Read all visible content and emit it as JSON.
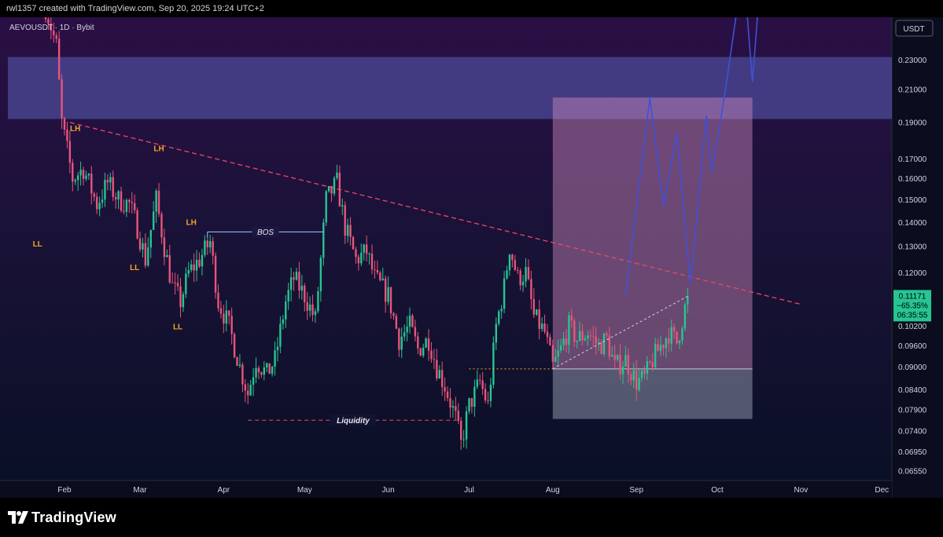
{
  "header": {
    "created_by": "rwl1357 created with TradingView.com, Sep 20, 2025 19:24 UTC+2"
  },
  "symbol": "AEVOUSDT · 1D · Bybit",
  "currency_button": "USDT",
  "logo_text": "TradingView",
  "colors": {
    "bull": "#26c591",
    "bear": "#e8557a",
    "resistance_zone": "#5b5fb8",
    "target_box": "#d08cbf",
    "stop_box": "#8e93a8",
    "projection": "#3f51d8",
    "trendline": "#f0456a",
    "annotation": "#f5a623",
    "last_price_bg": "#26c591"
  },
  "chart_data": {
    "type": "candlestick",
    "symbol": "AEVOUSDT",
    "interval": "1D",
    "exchange": "Bybit",
    "x_labels": [
      "Feb",
      "Mar",
      "Apr",
      "May",
      "Jun",
      "Jul",
      "Aug",
      "Sep",
      "Oct",
      "Nov",
      "Dec"
    ],
    "price_scale": "log",
    "y_ticks": [
      "0.23000",
      "0.21000",
      "0.19000",
      "0.17000",
      "0.16000",
      "0.15000",
      "0.14000",
      "0.13000",
      "0.12000",
      "0.10200",
      "0.09600",
      "0.09000",
      "0.08400",
      "0.07900",
      "0.07400",
      "0.06950",
      "0.06550"
    ],
    "last_price": {
      "value": "0.11171",
      "change": "−65.35%",
      "countdown": "06:35:55"
    },
    "ohlc_path": [
      [
        "2025-01-25",
        0.27
      ],
      [
        "2025-01-29",
        0.24
      ],
      [
        "2025-01-31",
        0.19
      ],
      [
        "2025-02-04",
        0.16
      ],
      [
        "2025-02-08",
        0.165
      ],
      [
        "2025-02-13",
        0.148
      ],
      [
        "2025-02-17",
        0.158
      ],
      [
        "2025-02-21",
        0.15
      ],
      [
        "2025-02-25",
        0.148
      ],
      [
        "2025-02-28",
        0.138
      ],
      [
        "2025-03-03",
        0.125
      ],
      [
        "2025-03-07",
        0.15
      ],
      [
        "2025-03-10",
        0.13
      ],
      [
        "2025-03-13",
        0.115
      ],
      [
        "2025-03-16",
        0.11
      ],
      [
        "2025-03-19",
        0.12
      ],
      [
        "2025-03-23",
        0.125
      ],
      [
        "2025-03-27",
        0.132
      ],
      [
        "2025-03-30",
        0.11
      ],
      [
        "2025-04-03",
        0.102
      ],
      [
        "2025-04-07",
        0.09
      ],
      [
        "2025-04-10",
        0.083
      ],
      [
        "2025-04-13",
        0.092
      ],
      [
        "2025-04-17",
        0.088
      ],
      [
        "2025-04-20",
        0.092
      ],
      [
        "2025-04-24",
        0.11
      ],
      [
        "2025-04-27",
        0.118
      ],
      [
        "2025-05-01",
        0.112
      ],
      [
        "2025-05-05",
        0.104
      ],
      [
        "2025-05-09",
        0.15
      ],
      [
        "2025-05-13",
        0.158
      ],
      [
        "2025-05-16",
        0.138
      ],
      [
        "2025-05-20",
        0.125
      ],
      [
        "2025-05-24",
        0.128
      ],
      [
        "2025-05-27",
        0.118
      ],
      [
        "2025-06-01",
        0.112
      ],
      [
        "2025-06-05",
        0.098
      ],
      [
        "2025-06-09",
        0.102
      ],
      [
        "2025-06-12",
        0.095
      ],
      [
        "2025-06-16",
        0.098
      ],
      [
        "2025-06-19",
        0.09
      ],
      [
        "2025-06-22",
        0.085
      ],
      [
        "2025-06-26",
        0.077
      ],
      [
        "2025-06-28",
        0.071
      ],
      [
        "2025-07-01",
        0.08
      ],
      [
        "2025-07-05",
        0.086
      ],
      [
        "2025-07-08",
        0.08
      ],
      [
        "2025-07-11",
        0.102
      ],
      [
        "2025-07-14",
        0.115
      ],
      [
        "2025-07-16",
        0.13
      ],
      [
        "2025-07-19",
        0.118
      ],
      [
        "2025-07-22",
        0.12
      ],
      [
        "2025-07-25",
        0.105
      ],
      [
        "2025-07-29",
        0.1
      ],
      [
        "2025-08-01",
        0.09
      ],
      [
        "2025-08-04",
        0.095
      ],
      [
        "2025-08-07",
        0.102
      ],
      [
        "2025-08-10",
        0.098
      ],
      [
        "2025-08-14",
        0.1
      ],
      [
        "2025-08-18",
        0.096
      ],
      [
        "2025-08-21",
        0.098
      ],
      [
        "2025-08-24",
        0.09
      ],
      [
        "2025-08-28",
        0.092
      ],
      [
        "2025-09-01",
        0.086
      ],
      [
        "2025-09-04",
        0.087
      ],
      [
        "2025-09-07",
        0.092
      ],
      [
        "2025-09-10",
        0.096
      ],
      [
        "2025-09-13",
        0.1
      ],
      [
        "2025-09-16",
        0.097
      ],
      [
        "2025-09-18",
        0.104
      ],
      [
        "2025-09-20",
        0.1117
      ]
    ],
    "resistance_zone": {
      "from": 0.192,
      "to": 0.232
    },
    "position": {
      "entry": 0.0895,
      "target": 0.205,
      "stop": 0.0768,
      "start": "2025-08-01",
      "end": "2025-10-14"
    },
    "projection": [
      [
        "2025-08-28",
        0.112
      ],
      [
        "2025-09-06",
        0.205
      ],
      [
        "2025-09-11",
        0.147
      ],
      [
        "2025-09-16",
        0.184
      ],
      [
        "2025-09-21",
        0.116
      ],
      [
        "2025-09-27",
        0.194
      ],
      [
        "2025-09-29",
        0.163
      ],
      [
        "2025-10-04",
        0.21
      ],
      [
        "2025-10-08",
        0.264
      ],
      [
        "2025-10-12",
        0.27
      ],
      [
        "2025-10-14",
        0.215
      ],
      [
        "2025-10-16",
        0.27
      ]
    ],
    "trendline": [
      [
        "2025-02-03",
        0.19
      ],
      [
        "2025-11-01",
        0.109
      ]
    ],
    "annotations": {
      "swing_labels": [
        {
          "text": "LH",
          "date": "2025-02-05",
          "price": 0.185
        },
        {
          "text": "LH",
          "date": "2025-03-08",
          "price": 0.174
        },
        {
          "text": "LH",
          "date": "2025-03-20",
          "price": 0.139
        },
        {
          "text": "LL",
          "date": "2025-01-22",
          "price": 0.13
        },
        {
          "text": "LL",
          "date": "2025-02-27",
          "price": 0.121
        },
        {
          "text": "LL",
          "date": "2025-03-15",
          "price": 0.101
        }
      ],
      "bos": {
        "text": "BOS",
        "price": 0.136,
        "from": "2025-03-26",
        "to": "2025-05-08"
      },
      "liquidity": {
        "text": "Liquidity",
        "price": 0.0765,
        "from": "2025-04-10",
        "to": "2025-06-27"
      },
      "entry_line": {
        "price": 0.0895,
        "from": "2025-07-01",
        "to": "2025-08-01"
      },
      "break_line": {
        "from": [
          "2025-08-01",
          0.0895
        ],
        "to": [
          "2025-09-20",
          0.1117
        ]
      }
    }
  }
}
